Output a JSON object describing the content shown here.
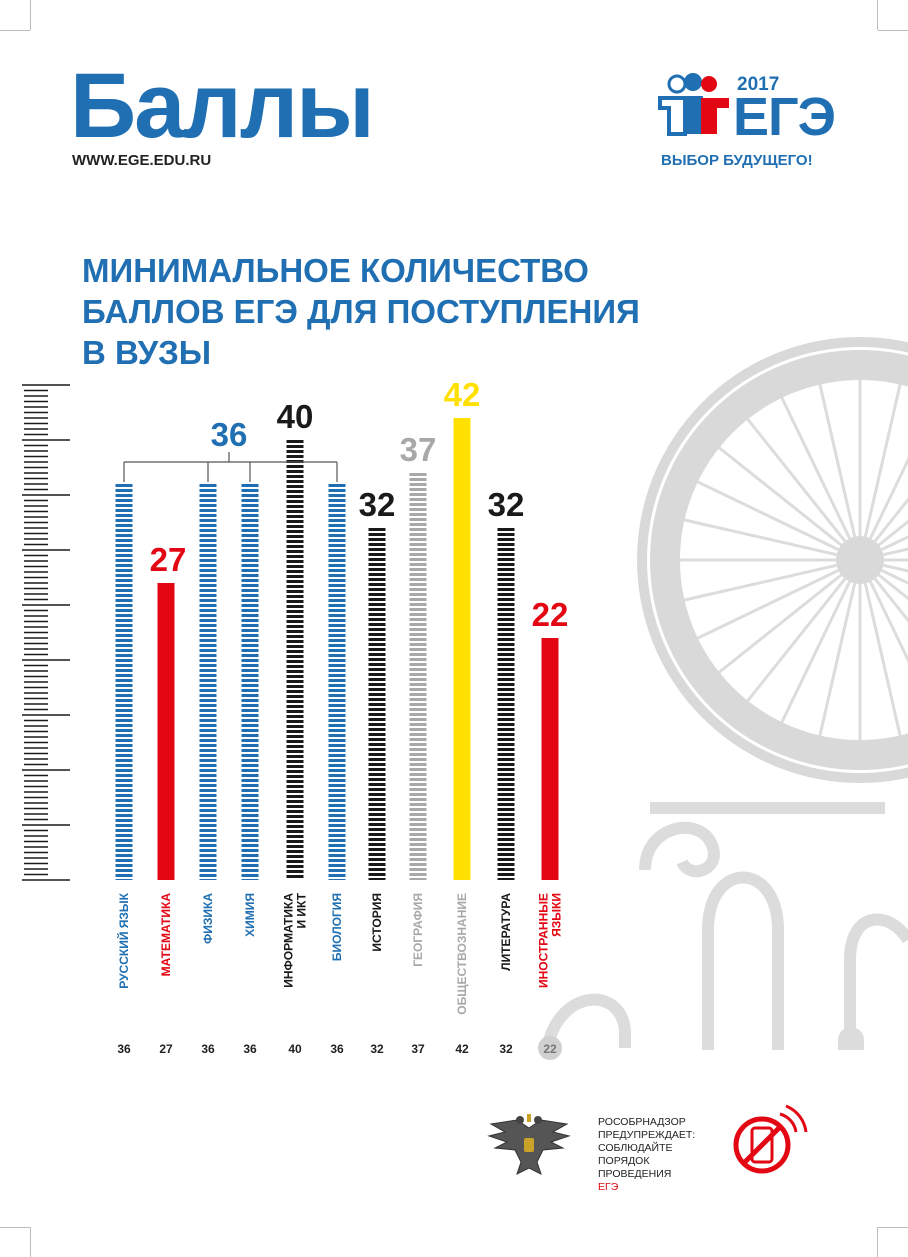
{
  "header": {
    "title": "Баллы",
    "url": "WWW.EGE.EDU.RU"
  },
  "logo": {
    "year": "2017",
    "name": "ЕГЭ",
    "slogan": "ВЫБОР БУДУЩЕГО!"
  },
  "headline": {
    "lines": [
      "МИНИМАЛЬНОЕ КОЛИЧЕСТВО",
      "БАЛЛОВ ЕГЭ ДЛЯ ПОСТУПЛЕНИЯ",
      "В ВУЗЫ"
    ]
  },
  "colors": {
    "blue": "#1f6fb2",
    "red": "#e30613",
    "black": "#1a1a1a",
    "gray": "#a8a8a8",
    "yellow": "#ffe000",
    "decor": "#dcdcdc"
  },
  "chart_data": {
    "type": "bar",
    "ylim": [
      0,
      45
    ],
    "categories": [
      "РУССКИЙ ЯЗЫК",
      "МАТЕМАТИКА",
      "ФИЗИКА",
      "ХИМИЯ",
      "ИНФОРМАТИКА\nИ ИКТ",
      "БИОЛОГИЯ",
      "ИСТОРИЯ",
      "ГЕОГРАФИЯ",
      "ОБЩЕСТВОЗНАНИЕ",
      "ЛИТЕРАТУРА",
      "ИНОСТРАННЫЕ\nЯЗЫКИ"
    ],
    "values": [
      36,
      27,
      36,
      36,
      40,
      36,
      32,
      37,
      42,
      32,
      22
    ],
    "colors": [
      "blue",
      "red",
      "blue",
      "blue",
      "black",
      "blue",
      "black",
      "gray",
      "yellow",
      "black",
      "red"
    ],
    "styles": [
      "striped",
      "solid",
      "striped",
      "striped",
      "striped",
      "striped",
      "striped",
      "striped",
      "solid",
      "striped",
      "solid"
    ],
    "label_colors": [
      "blue",
      "red",
      "blue",
      "blue",
      "black",
      "blue",
      "black",
      "gray",
      "gray",
      "black",
      "red"
    ],
    "top_labels": [
      {
        "text": "36",
        "color": "blue",
        "group": [
          0,
          2,
          3,
          5
        ]
      },
      {
        "text": "27",
        "color": "red",
        "bar": 1
      },
      {
        "text": "40",
        "color": "black",
        "bar": 4
      },
      {
        "text": "32",
        "color": "black",
        "bar": 6
      },
      {
        "text": "37",
        "color": "gray",
        "bar": 7
      },
      {
        "text": "42",
        "color": "yellow",
        "bar": 8
      },
      {
        "text": "32",
        "color": "black",
        "bar": 9
      },
      {
        "text": "22",
        "color": "red",
        "bar": 10
      }
    ],
    "bottom_values": [
      "36",
      "27",
      "36",
      "36",
      "40",
      "36",
      "32",
      "37",
      "42",
      "32",
      "22"
    ]
  },
  "footer": {
    "warning_lines": [
      "РОСОБРНАДЗОР",
      "ПРЕДУПРЕЖДАЕТ:",
      "СОБЛЮДАЙТЕ",
      "ПОРЯДОК",
      "ПРОВЕДЕНИЯ"
    ],
    "warning_last": "ЕГЭ"
  }
}
